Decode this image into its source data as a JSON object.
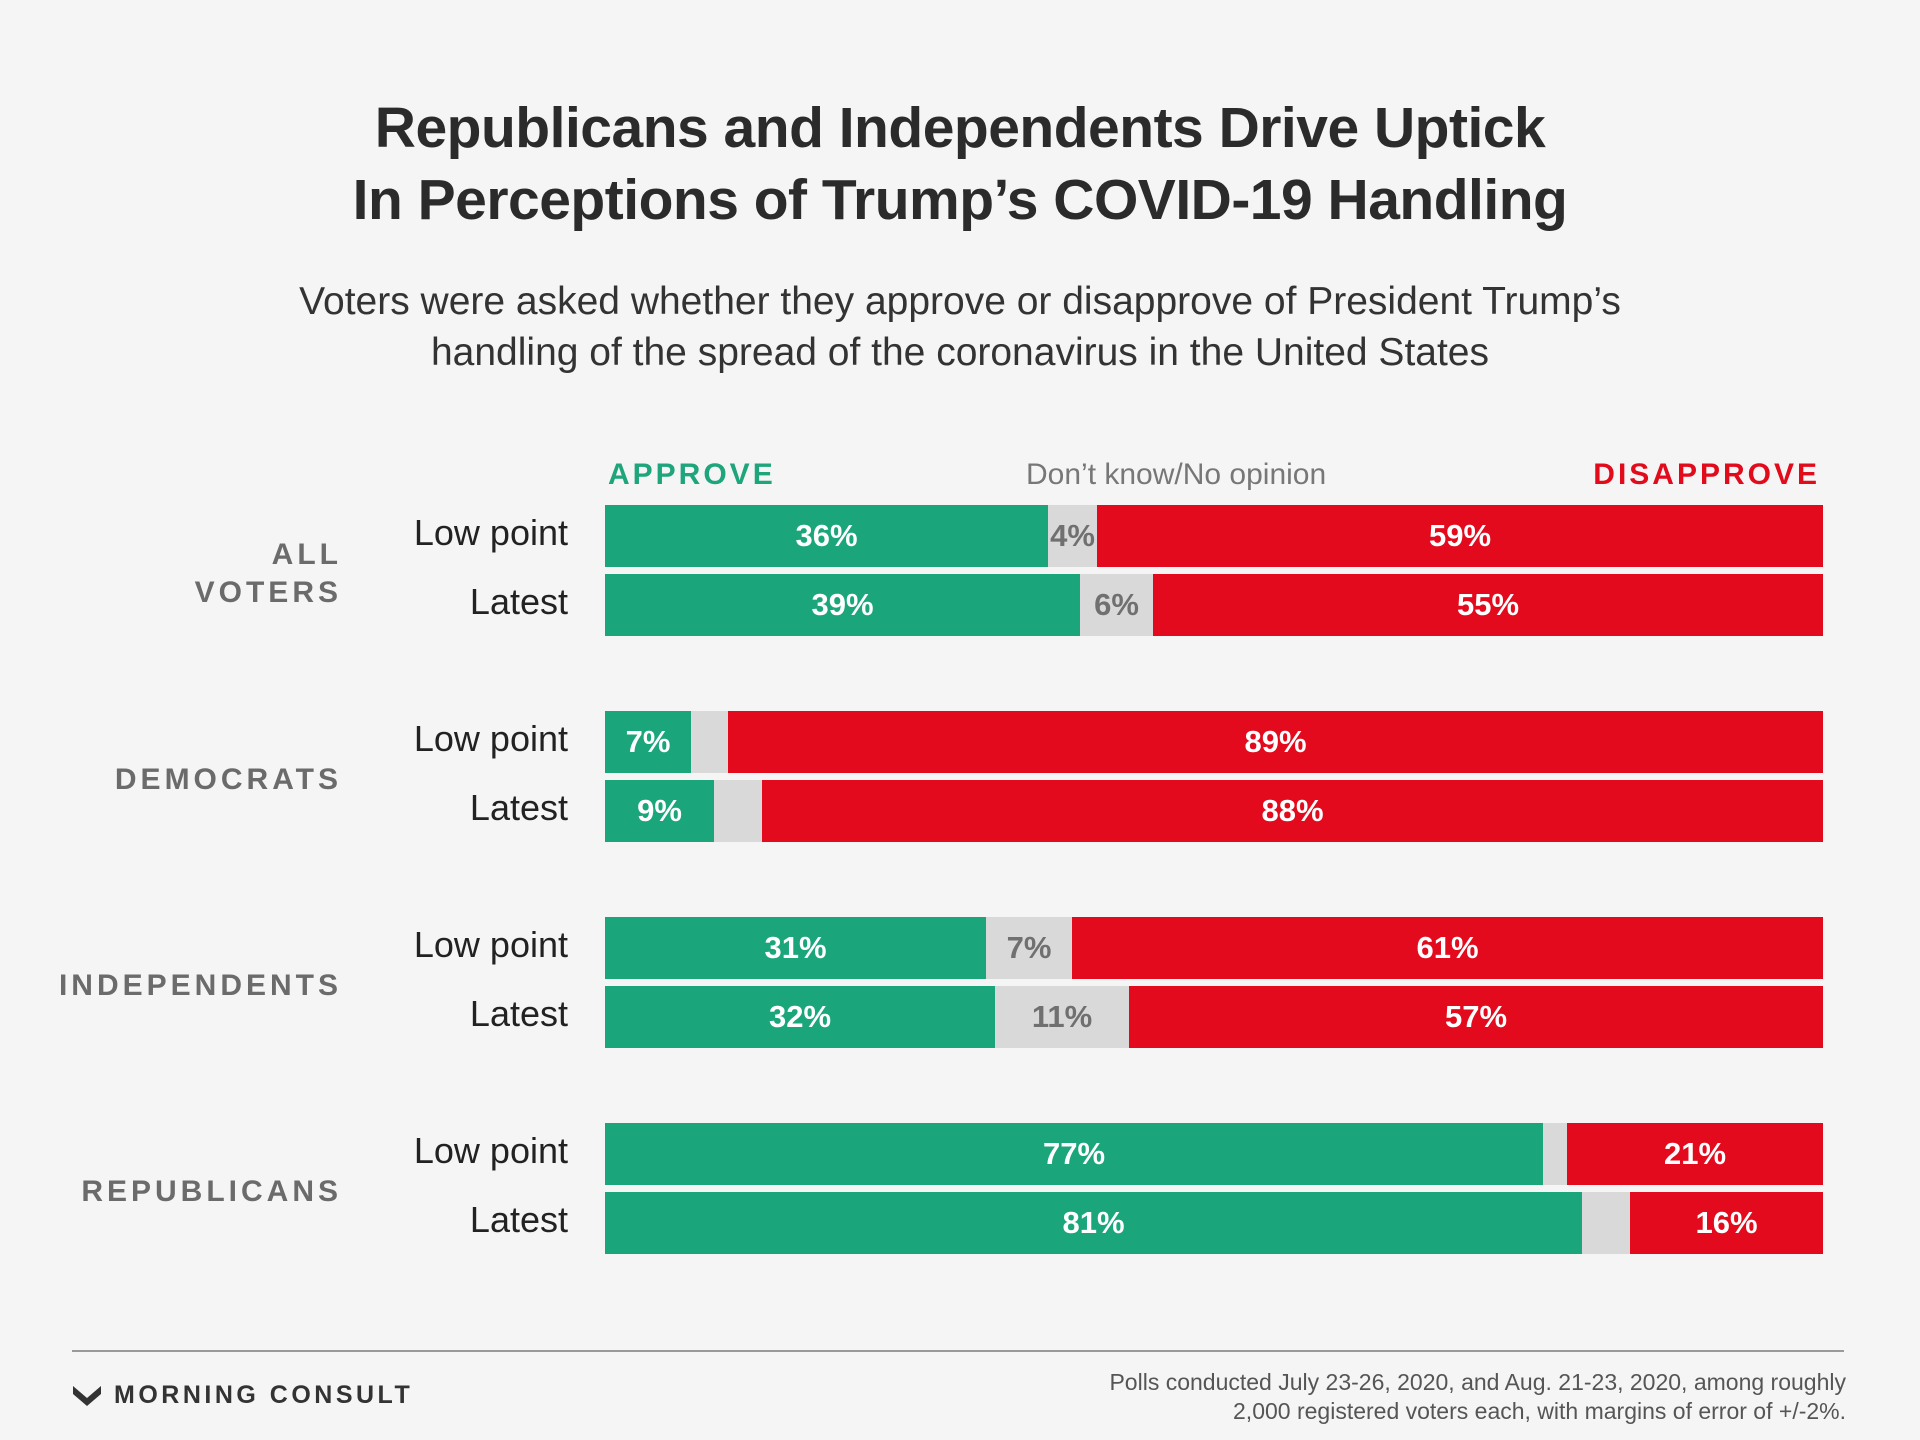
{
  "title": {
    "line1": "Republicans and Independents Drive Uptick",
    "line2": "In Perceptions of Trump’s COVID-19 Handling"
  },
  "subtitle": {
    "line1": "Voters were asked whether they approve or disapprove of President Trump’s",
    "line2": "handling of the spread of the coronavirus in the United States"
  },
  "legend": {
    "approve": "APPROVE",
    "dont_know": "Don’t know/No opinion",
    "disapprove": "DISAPPROVE"
  },
  "colors": {
    "approve": "#1aa67a",
    "dont_know": "#d9d9d9",
    "disapprove": "#e20a1c"
  },
  "chart_data": {
    "type": "bar",
    "orientation": "horizontal",
    "stacked": true,
    "series_order": [
      "approve",
      "dont_know",
      "disapprove"
    ],
    "groups": [
      {
        "label": [
          "ALL",
          "VOTERS"
        ],
        "rows": [
          {
            "label": "Low point",
            "approve": 36,
            "dont_know": 4,
            "disapprove": 59
          },
          {
            "label": "Latest",
            "approve": 39,
            "dont_know": 6,
            "disapprove": 55
          }
        ]
      },
      {
        "label": [
          "DEMOCRATS"
        ],
        "rows": [
          {
            "label": "Low point",
            "approve": 7,
            "dont_know": 3,
            "disapprove": 89,
            "dont_know_labeled": false
          },
          {
            "label": "Latest",
            "approve": 9,
            "dont_know": 4,
            "disapprove": 88,
            "dont_know_labeled": false
          }
        ]
      },
      {
        "label": [
          "INDEPENDENTS"
        ],
        "rows": [
          {
            "label": "Low point",
            "approve": 31,
            "dont_know": 7,
            "disapprove": 61
          },
          {
            "label": "Latest",
            "approve": 32,
            "dont_know": 11,
            "disapprove": 57
          }
        ]
      },
      {
        "label": [
          "REPUBLICANS"
        ],
        "rows": [
          {
            "label": "Low point",
            "approve": 77,
            "dont_know": 2,
            "disapprove": 21,
            "dont_know_labeled": false
          },
          {
            "label": "Latest",
            "approve": 81,
            "dont_know": 4,
            "disapprove": 16,
            "dont_know_labeled": false
          }
        ]
      }
    ]
  },
  "footer": {
    "logo_text": "MORNING CONSULT",
    "note_line1": "Polls conducted July 23-26, 2020, and Aug. 21-23, 2020, among roughly",
    "note_line2": "2,000 registered voters each, with margins of error of +/-2%."
  }
}
